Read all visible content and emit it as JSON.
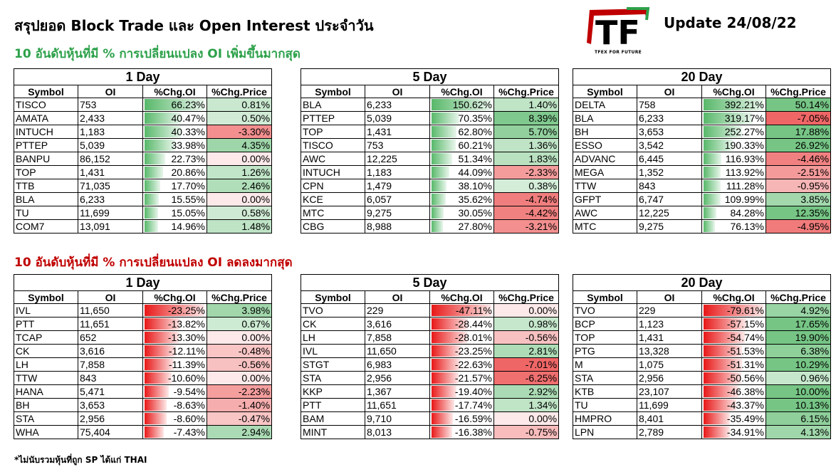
{
  "header": {
    "title": "สรุปยอด Block Trade และ Open Interest ประจำวัน",
    "update": "Update 24/08/22",
    "logo_text": "TF",
    "logo_sub": "TFEX FOR FUTURE"
  },
  "sections": {
    "increase_title": "10 อันดับหุ้นที่มี % การเปลี่ยนแปลง OI เพิ่มขึ้นมากสุด",
    "decrease_title": "10 อันดับหุ้นที่มี % การเปลี่ยนแปลง OI ลดลงมากสุด"
  },
  "footnote": "*ไม่นับรวมหุ้นที่ถูก SP ได้แก่ THAI",
  "colors": {
    "green_title": "#2da14a",
    "red_title": "#c00000",
    "pos_bar": "#58b86a",
    "neg_bar": "#e81818"
  },
  "columns": [
    "Symbol",
    "OI",
    "%Chg.OI",
    "%Chg.Price"
  ],
  "tables": [
    {
      "period": "1 Day",
      "section": "increase",
      "max_bar": 66.23,
      "rows": [
        {
          "symbol": "TISCO",
          "oi": "753",
          "chg_oi": "66.23%",
          "chg_price": "0.81%",
          "oi_pct": 66.23,
          "price_pct": 0.81
        },
        {
          "symbol": "AMATA",
          "oi": "2,433",
          "chg_oi": "40.47%",
          "chg_price": "0.50%",
          "oi_pct": 40.47,
          "price_pct": 0.5
        },
        {
          "symbol": "INTUCH",
          "oi": "1,183",
          "chg_oi": "40.33%",
          "chg_price": "-3.30%",
          "oi_pct": 40.33,
          "price_pct": -3.3
        },
        {
          "symbol": "PTTEP",
          "oi": "5,039",
          "chg_oi": "33.98%",
          "chg_price": "4.35%",
          "oi_pct": 33.98,
          "price_pct": 4.35
        },
        {
          "symbol": "BANPU",
          "oi": "86,152",
          "chg_oi": "22.73%",
          "chg_price": "0.00%",
          "oi_pct": 22.73,
          "price_pct": 0.0
        },
        {
          "symbol": "TOP",
          "oi": "1,431",
          "chg_oi": "20.86%",
          "chg_price": "1.26%",
          "oi_pct": 20.86,
          "price_pct": 1.26
        },
        {
          "symbol": "TTB",
          "oi": "71,035",
          "chg_oi": "17.70%",
          "chg_price": "2.46%",
          "oi_pct": 17.7,
          "price_pct": 2.46
        },
        {
          "symbol": "BLA",
          "oi": "6,233",
          "chg_oi": "15.55%",
          "chg_price": "0.00%",
          "oi_pct": 15.55,
          "price_pct": 0.0
        },
        {
          "symbol": "TU",
          "oi": "11,699",
          "chg_oi": "15.05%",
          "chg_price": "0.58%",
          "oi_pct": 15.05,
          "price_pct": 0.58
        },
        {
          "symbol": "COM7",
          "oi": "13,091",
          "chg_oi": "14.96%",
          "chg_price": "1.48%",
          "oi_pct": 14.96,
          "price_pct": 1.48
        }
      ]
    },
    {
      "period": "5 Day",
      "section": "increase",
      "max_bar": 150.62,
      "rows": [
        {
          "symbol": "BLA",
          "oi": "6,233",
          "chg_oi": "150.62%",
          "chg_price": "1.40%",
          "oi_pct": 150.62,
          "price_pct": 1.4
        },
        {
          "symbol": "PTTEP",
          "oi": "5,039",
          "chg_oi": "70.35%",
          "chg_price": "8.39%",
          "oi_pct": 70.35,
          "price_pct": 8.39
        },
        {
          "symbol": "TOP",
          "oi": "1,431",
          "chg_oi": "62.80%",
          "chg_price": "5.70%",
          "oi_pct": 62.8,
          "price_pct": 5.7
        },
        {
          "symbol": "TISCO",
          "oi": "753",
          "chg_oi": "60.21%",
          "chg_price": "1.36%",
          "oi_pct": 60.21,
          "price_pct": 1.36
        },
        {
          "symbol": "AWC",
          "oi": "12,225",
          "chg_oi": "51.34%",
          "chg_price": "1.83%",
          "oi_pct": 51.34,
          "price_pct": 1.83
        },
        {
          "symbol": "INTUCH",
          "oi": "1,183",
          "chg_oi": "44.09%",
          "chg_price": "-2.33%",
          "oi_pct": 44.09,
          "price_pct": -2.33
        },
        {
          "symbol": "CPN",
          "oi": "1,479",
          "chg_oi": "38.10%",
          "chg_price": "0.38%",
          "oi_pct": 38.1,
          "price_pct": 0.38
        },
        {
          "symbol": "KCE",
          "oi": "6,057",
          "chg_oi": "35.62%",
          "chg_price": "-4.74%",
          "oi_pct": 35.62,
          "price_pct": -4.74
        },
        {
          "symbol": "MTC",
          "oi": "9,275",
          "chg_oi": "30.05%",
          "chg_price": "-4.42%",
          "oi_pct": 30.05,
          "price_pct": -4.42
        },
        {
          "symbol": "CBG",
          "oi": "8,988",
          "chg_oi": "27.80%",
          "chg_price": "-3.21%",
          "oi_pct": 27.8,
          "price_pct": -3.21
        }
      ]
    },
    {
      "period": "20 Day",
      "section": "increase",
      "max_bar": 392.21,
      "rows": [
        {
          "symbol": "DELTA",
          "oi": "758",
          "chg_oi": "392.21%",
          "chg_price": "50.14%",
          "oi_pct": 392.21,
          "price_pct": 50.14
        },
        {
          "symbol": "BLA",
          "oi": "6,233",
          "chg_oi": "319.17%",
          "chg_price": "-7.05%",
          "oi_pct": 319.17,
          "price_pct": -7.05
        },
        {
          "symbol": "BH",
          "oi": "3,653",
          "chg_oi": "252.27%",
          "chg_price": "17.88%",
          "oi_pct": 252.27,
          "price_pct": 17.88
        },
        {
          "symbol": "ESSO",
          "oi": "3,542",
          "chg_oi": "190.33%",
          "chg_price": "26.92%",
          "oi_pct": 190.33,
          "price_pct": 26.92
        },
        {
          "symbol": "ADVANC",
          "oi": "6,445",
          "chg_oi": "116.93%",
          "chg_price": "-4.46%",
          "oi_pct": 116.93,
          "price_pct": -4.46
        },
        {
          "symbol": "MEGA",
          "oi": "1,352",
          "chg_oi": "113.92%",
          "chg_price": "-2.51%",
          "oi_pct": 113.92,
          "price_pct": -2.51
        },
        {
          "symbol": "TTW",
          "oi": "843",
          "chg_oi": "111.28%",
          "chg_price": "-0.95%",
          "oi_pct": 111.28,
          "price_pct": -0.95
        },
        {
          "symbol": "GFPT",
          "oi": "6,747",
          "chg_oi": "109.99%",
          "chg_price": "3.85%",
          "oi_pct": 109.99,
          "price_pct": 3.85
        },
        {
          "symbol": "AWC",
          "oi": "12,225",
          "chg_oi": "84.28%",
          "chg_price": "12.35%",
          "oi_pct": 84.28,
          "price_pct": 12.35
        },
        {
          "symbol": "MTC",
          "oi": "9,275",
          "chg_oi": "76.13%",
          "chg_price": "-4.95%",
          "oi_pct": 76.13,
          "price_pct": -4.95
        }
      ]
    },
    {
      "period": "1 Day",
      "section": "decrease",
      "max_bar": 23.25,
      "rows": [
        {
          "symbol": "IVL",
          "oi": "11,650",
          "chg_oi": "-23.25%",
          "chg_price": "3.98%",
          "oi_pct": -23.25,
          "price_pct": 3.98
        },
        {
          "symbol": "PTT",
          "oi": "11,651",
          "chg_oi": "-13.82%",
          "chg_price": "0.67%",
          "oi_pct": -13.82,
          "price_pct": 0.67
        },
        {
          "symbol": "TCAP",
          "oi": "652",
          "chg_oi": "-13.30%",
          "chg_price": "0.00%",
          "oi_pct": -13.3,
          "price_pct": 0.0
        },
        {
          "symbol": "CK",
          "oi": "3,616",
          "chg_oi": "-12.11%",
          "chg_price": "-0.48%",
          "oi_pct": -12.11,
          "price_pct": -0.48
        },
        {
          "symbol": "LH",
          "oi": "7,858",
          "chg_oi": "-11.39%",
          "chg_price": "-0.56%",
          "oi_pct": -11.39,
          "price_pct": -0.56
        },
        {
          "symbol": "TTW",
          "oi": "843",
          "chg_oi": "-10.60%",
          "chg_price": "0.00%",
          "oi_pct": -10.6,
          "price_pct": 0.0
        },
        {
          "symbol": "HANA",
          "oi": "5,471",
          "chg_oi": "-9.54%",
          "chg_price": "-2.23%",
          "oi_pct": -9.54,
          "price_pct": -2.23
        },
        {
          "symbol": "BH",
          "oi": "3,653",
          "chg_oi": "-8.63%",
          "chg_price": "-1.40%",
          "oi_pct": -8.63,
          "price_pct": -1.4
        },
        {
          "symbol": "STA",
          "oi": "2,956",
          "chg_oi": "-8.60%",
          "chg_price": "-0.47%",
          "oi_pct": -8.6,
          "price_pct": -0.47
        },
        {
          "symbol": "WHA",
          "oi": "75,404",
          "chg_oi": "-7.43%",
          "chg_price": "2.94%",
          "oi_pct": -7.43,
          "price_pct": 2.94
        }
      ]
    },
    {
      "period": "5 Day",
      "section": "decrease",
      "max_bar": 47.11,
      "rows": [
        {
          "symbol": "TVO",
          "oi": "229",
          "chg_oi": "-47.11%",
          "chg_price": "0.00%",
          "oi_pct": -47.11,
          "price_pct": 0.0
        },
        {
          "symbol": "CK",
          "oi": "3,616",
          "chg_oi": "-28.44%",
          "chg_price": "0.98%",
          "oi_pct": -28.44,
          "price_pct": 0.98
        },
        {
          "symbol": "LH",
          "oi": "7,858",
          "chg_oi": "-28.01%",
          "chg_price": "-0.56%",
          "oi_pct": -28.01,
          "price_pct": -0.56
        },
        {
          "symbol": "IVL",
          "oi": "11,650",
          "chg_oi": "-23.25%",
          "chg_price": "2.81%",
          "oi_pct": -23.25,
          "price_pct": 2.81
        },
        {
          "symbol": "STGT",
          "oi": "6,983",
          "chg_oi": "-22.63%",
          "chg_price": "-7.01%",
          "oi_pct": -22.63,
          "price_pct": -7.01
        },
        {
          "symbol": "STA",
          "oi": "2,956",
          "chg_oi": "-21.57%",
          "chg_price": "-6.25%",
          "oi_pct": -21.57,
          "price_pct": -6.25
        },
        {
          "symbol": "KKP",
          "oi": "1,367",
          "chg_oi": "-19.40%",
          "chg_price": "2.92%",
          "oi_pct": -19.4,
          "price_pct": 2.92
        },
        {
          "symbol": "PTT",
          "oi": "11,651",
          "chg_oi": "-17.74%",
          "chg_price": "1.34%",
          "oi_pct": -17.74,
          "price_pct": 1.34
        },
        {
          "symbol": "BAM",
          "oi": "9,710",
          "chg_oi": "-16.59%",
          "chg_price": "0.00%",
          "oi_pct": -16.59,
          "price_pct": 0.0
        },
        {
          "symbol": "MINT",
          "oi": "8,013",
          "chg_oi": "-16.38%",
          "chg_price": "-0.75%",
          "oi_pct": -16.38,
          "price_pct": -0.75
        }
      ]
    },
    {
      "period": "20 Day",
      "section": "decrease",
      "max_bar": 79.61,
      "rows": [
        {
          "symbol": "TVO",
          "oi": "229",
          "chg_oi": "-79.61%",
          "chg_price": "4.92%",
          "oi_pct": -79.61,
          "price_pct": 4.92
        },
        {
          "symbol": "BCP",
          "oi": "1,123",
          "chg_oi": "-57.15%",
          "chg_price": "17.65%",
          "oi_pct": -57.15,
          "price_pct": 17.65
        },
        {
          "symbol": "TOP",
          "oi": "1,431",
          "chg_oi": "-54.74%",
          "chg_price": "19.90%",
          "oi_pct": -54.74,
          "price_pct": 19.9
        },
        {
          "symbol": "PTG",
          "oi": "13,328",
          "chg_oi": "-51.53%",
          "chg_price": "6.38%",
          "oi_pct": -51.53,
          "price_pct": 6.38
        },
        {
          "symbol": "M",
          "oi": "1,075",
          "chg_oi": "-51.31%",
          "chg_price": "10.29%",
          "oi_pct": -51.31,
          "price_pct": 10.29
        },
        {
          "symbol": "STA",
          "oi": "2,956",
          "chg_oi": "-50.56%",
          "chg_price": "0.96%",
          "oi_pct": -50.56,
          "price_pct": 0.96
        },
        {
          "symbol": "KTB",
          "oi": "23,107",
          "chg_oi": "-46.38%",
          "chg_price": "10.00%",
          "oi_pct": -46.38,
          "price_pct": 10.0
        },
        {
          "symbol": "TU",
          "oi": "11,699",
          "chg_oi": "-43.37%",
          "chg_price": "10.13%",
          "oi_pct": -43.37,
          "price_pct": 10.13
        },
        {
          "symbol": "HMPRO",
          "oi": "8,401",
          "chg_oi": "-35.49%",
          "chg_price": "6.15%",
          "oi_pct": -35.49,
          "price_pct": 6.15
        },
        {
          "symbol": "LPN",
          "oi": "2,789",
          "chg_oi": "-34.91%",
          "chg_price": "4.13%",
          "oi_pct": -34.91,
          "price_pct": 4.13
        }
      ]
    }
  ]
}
